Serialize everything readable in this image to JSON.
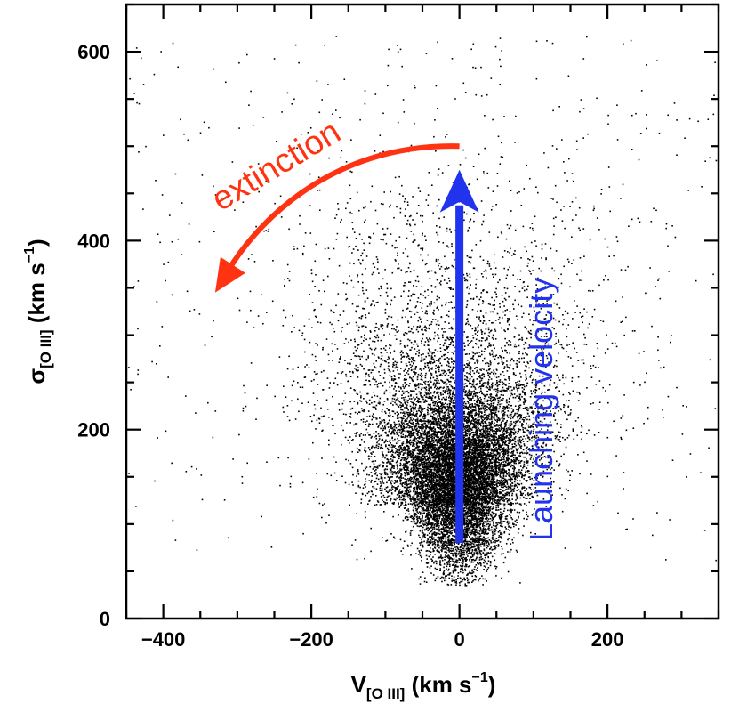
{
  "chart_data": {
    "type": "scatter",
    "title": "",
    "xlabel": {
      "main": "V",
      "sub": "[O III]",
      "units": " (km s",
      "sup": "−1",
      "close": ")"
    },
    "ylabel": {
      "main": "σ",
      "sub": "[O III]",
      "units": " (km s",
      "sup": "−1",
      "close": ")"
    },
    "xlim": [
      -450,
      350
    ],
    "ylim": [
      0,
      650
    ],
    "xticks": [
      -400,
      -200,
      0,
      200
    ],
    "xtick_labels": [
      "−400",
      "−200",
      "0",
      "200"
    ],
    "yticks": [
      0,
      200,
      400,
      600
    ],
    "ytick_labels": [
      "0",
      "200",
      "400",
      "600"
    ],
    "x_minor_step": 50,
    "y_minor_step": 50,
    "grid": false,
    "series": [
      {
        "name": "galaxies",
        "marker": "dot",
        "color": "#000000",
        "n_points": 14000,
        "core_center": [
          0,
          150
        ],
        "core_spread": [
          45,
          50
        ],
        "halo_spread": [
          120,
          110
        ],
        "vertical_range": [
          35,
          620
        ]
      }
    ],
    "annotations": [
      {
        "name": "extinction",
        "text": "extinction",
        "color": "#ff3311",
        "arrow_from": [
          0,
          500
        ],
        "arrow_to": [
          -330,
          345
        ]
      },
      {
        "name": "launching-velocity",
        "text": "Launching velocity",
        "color": "#2233ee",
        "arrow_from": [
          0,
          80
        ],
        "arrow_to": [
          0,
          475
        ]
      }
    ]
  }
}
